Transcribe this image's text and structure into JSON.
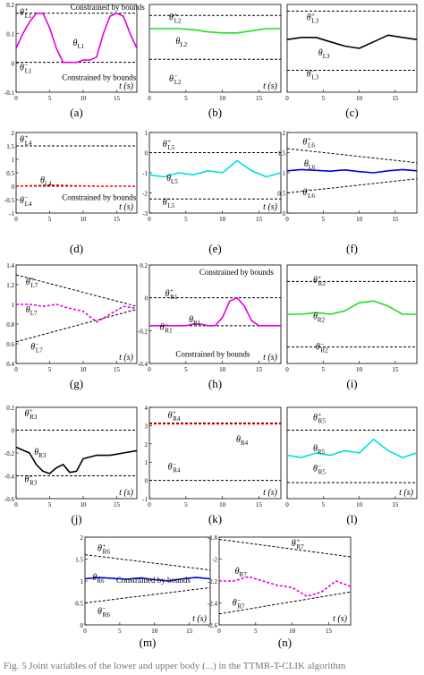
{
  "footer_text": "Fig. 5  Joint variables of the lower and upper body (...) in the TTMR-T-CLIK algorithm",
  "chart_data": [
    {
      "type": "line",
      "caption": "(a)",
      "xlim": [
        0,
        18
      ],
      "ylim": [
        -0.1,
        0.2
      ],
      "yticks": [
        "-0.1",
        "0",
        "0.1",
        "0.2"
      ],
      "xticks": [
        "0",
        "5",
        "10",
        "15"
      ],
      "xlabel": "t (s)",
      "bounds": [
        {
          "name": "θ+L1",
          "y": [
            0.17,
            0.17
          ]
        },
        {
          "name": "θ−L1",
          "y": [
            0.002,
            0.002
          ]
        }
      ],
      "series": [
        {
          "name": "θL1",
          "color": "#e000e0",
          "style": "solid",
          "x": [
            0,
            1,
            2,
            3,
            4,
            5,
            6,
            7,
            8,
            9,
            10,
            11,
            12,
            13,
            14,
            15,
            16,
            17,
            18
          ],
          "y": [
            0.05,
            0.1,
            0.14,
            0.17,
            0.17,
            0.12,
            0.05,
            0.002,
            0.002,
            0.002,
            0.01,
            0.01,
            0.02,
            0.1,
            0.16,
            0.17,
            0.16,
            0.1,
            0.05
          ]
        }
      ],
      "annotations": [
        "Constrained by bounds",
        "Constrained by bounds"
      ]
    },
    {
      "type": "line",
      "caption": "(b)",
      "xlim": [
        0,
        18
      ],
      "ylim": [
        -0.6,
        0.2
      ],
      "yticks": [],
      "xticks": [
        "0",
        "5",
        "10",
        "15"
      ],
      "xlabel": "t (s)",
      "bounds": [
        {
          "name": "θ+L2",
          "y": [
            0.1,
            0.1
          ]
        },
        {
          "name": "θ−L2",
          "y": [
            -0.3,
            -0.3
          ]
        }
      ],
      "series": [
        {
          "name": "θL2",
          "color": "#22dd22",
          "style": "solid",
          "x": [
            0,
            2,
            4,
            6,
            8,
            10,
            12,
            14,
            16,
            18
          ],
          "y": [
            -0.02,
            -0.02,
            -0.02,
            -0.03,
            -0.05,
            -0.06,
            -0.06,
            -0.04,
            -0.02,
            -0.02
          ]
        }
      ],
      "annotations": []
    },
    {
      "type": "line",
      "caption": "(c)",
      "xlim": [
        0,
        18
      ],
      "ylim": [
        -0.2,
        0.2
      ],
      "yticks": [],
      "xticks": [
        "0",
        "5",
        "10",
        "15"
      ],
      "xlabel": "",
      "bounds": [
        {
          "name": "θ+L3",
          "y": [
            0.17,
            0.17
          ]
        },
        {
          "name": "θ−L3",
          "y": [
            -0.1,
            -0.1
          ]
        }
      ],
      "series": [
        {
          "name": "θL3",
          "color": "#000000",
          "style": "solid",
          "x": [
            0,
            2,
            4,
            6,
            8,
            10,
            12,
            14,
            16,
            18
          ],
          "y": [
            0.04,
            0.05,
            0.05,
            0.03,
            0.01,
            0.0,
            0.03,
            0.06,
            0.05,
            0.04
          ]
        }
      ],
      "annotations": []
    },
    {
      "type": "line",
      "caption": "(d)",
      "xlim": [
        0,
        18
      ],
      "ylim": [
        -1,
        2
      ],
      "yticks": [
        "-1",
        "-0.5",
        "0",
        "0.5",
        "1",
        "1.5",
        "2"
      ],
      "xticks": [
        "0",
        "5",
        "10",
        "15"
      ],
      "xlabel": "t (s)",
      "bounds": [
        {
          "name": "θ+L4",
          "y": [
            1.5,
            1.5
          ]
        },
        {
          "name": "θ−L4",
          "y": [
            0.0,
            0.0
          ]
        }
      ],
      "series": [
        {
          "name": "θL4",
          "color": "#ff0000",
          "style": "dashed",
          "x": [
            0,
            4,
            6,
            8,
            10,
            12,
            18
          ],
          "y": [
            0.0,
            0.03,
            0.04,
            0.02,
            0.01,
            0.0,
            0.0
          ]
        }
      ],
      "annotations": [
        "Constrained by bounds"
      ]
    },
    {
      "type": "line",
      "caption": "(e)",
      "xlim": [
        0,
        18
      ],
      "ylim": [
        -3,
        1
      ],
      "yticks": [
        "-3",
        "-2",
        "-1",
        "0",
        "1"
      ],
      "xticks": [
        "0",
        "5",
        "10",
        "15"
      ],
      "xlabel": "t (s)",
      "bounds": [
        {
          "name": "θ+L5",
          "y": [
            0.0,
            0.0
          ]
        },
        {
          "name": "θ−L5",
          "y": [
            -2.3,
            -2.3
          ]
        }
      ],
      "series": [
        {
          "name": "θL5",
          "color": "#00e0e0",
          "style": "solid",
          "x": [
            0,
            2,
            4,
            6,
            8,
            10,
            12,
            14,
            16,
            18
          ],
          "y": [
            -1.1,
            -1.2,
            -1.0,
            -1.1,
            -0.9,
            -1.0,
            -0.4,
            -0.9,
            -1.2,
            -1.0
          ]
        }
      ],
      "annotations": []
    },
    {
      "type": "line",
      "caption": "(f)",
      "xlim": [
        0,
        18
      ],
      "ylim": [
        0,
        2
      ],
      "yticks": [
        "0",
        "0.5",
        "1",
        "1.5",
        "2"
      ],
      "xticks": [
        "0",
        "5",
        "10",
        "15"
      ],
      "xlabel": "",
      "bounds": [
        {
          "name": "θ+L6",
          "y": [
            1.6,
            1.25
          ]
        },
        {
          "name": "θ−L6",
          "y": [
            0.5,
            0.85
          ]
        }
      ],
      "series": [
        {
          "name": "θL6",
          "color": "#0000dd",
          "style": "solid",
          "x": [
            0,
            2,
            4,
            6,
            8,
            10,
            12,
            14,
            16,
            18
          ],
          "y": [
            1.05,
            1.08,
            1.06,
            1.04,
            1.07,
            1.03,
            1.0,
            1.05,
            1.08,
            1.05
          ]
        }
      ],
      "annotations": []
    },
    {
      "type": "line",
      "caption": "(g)",
      "xlim": [
        0,
        18
      ],
      "ylim": [
        0.4,
        1.4
      ],
      "yticks": [
        "0.4",
        "0.6",
        "0.8",
        "1",
        "1.2",
        "1.4"
      ],
      "xticks": [
        "0",
        "5",
        "10",
        "15"
      ],
      "xlabel": "t (s)",
      "bounds": [
        {
          "name": "θ+L7",
          "y": [
            1.3,
            0.98
          ]
        },
        {
          "name": "θ−L7",
          "y": [
            0.62,
            0.95
          ]
        }
      ],
      "series": [
        {
          "name": "θL7",
          "color": "#e000e0",
          "style": "dashed",
          "x": [
            0,
            2,
            4,
            6,
            8,
            10,
            12,
            14,
            16,
            18
          ],
          "y": [
            1.0,
            1.0,
            0.98,
            1.0,
            0.96,
            0.93,
            0.82,
            0.9,
            0.98,
            0.96
          ]
        }
      ],
      "annotations": []
    },
    {
      "type": "line",
      "caption": "(h)",
      "xlim": [
        0,
        18
      ],
      "ylim": [
        -0.4,
        0.2
      ],
      "yticks": [
        "-0.4",
        "-0.2",
        "0",
        "0.2"
      ],
      "xticks": [
        "0",
        "5",
        "10",
        "15"
      ],
      "xlabel": "t (s)",
      "bounds": [
        {
          "name": "θ+R1",
          "y": [
            0.0,
            0.0
          ]
        },
        {
          "name": "θ−R1",
          "y": [
            -0.17,
            -0.17
          ]
        }
      ],
      "series": [
        {
          "name": "θR1",
          "color": "#e000e0",
          "style": "solid",
          "x": [
            0,
            2,
            4,
            5,
            6,
            7,
            8,
            9,
            10,
            11,
            12,
            13,
            14,
            15,
            16,
            18
          ],
          "y": [
            -0.17,
            -0.17,
            -0.17,
            -0.17,
            -0.16,
            -0.16,
            -0.17,
            -0.17,
            -0.12,
            -0.02,
            0.0,
            -0.05,
            -0.14,
            -0.17,
            -0.17,
            -0.17
          ]
        }
      ],
      "annotations": [
        "Constrained by bounds",
        "Constrained by bounds"
      ]
    },
    {
      "type": "line",
      "caption": "(i)",
      "xlim": [
        0,
        18
      ],
      "ylim": [
        -0.4,
        0.2
      ],
      "yticks": [],
      "xticks": [
        "0",
        "5",
        "10",
        "15"
      ],
      "xlabel": "",
      "bounds": [
        {
          "name": "θ+R2",
          "y": [
            0.1,
            0.1
          ]
        },
        {
          "name": "θ−R2",
          "y": [
            -0.3,
            -0.3
          ]
        }
      ],
      "series": [
        {
          "name": "θR2",
          "color": "#22dd22",
          "style": "solid",
          "x": [
            0,
            2,
            4,
            6,
            8,
            10,
            12,
            14,
            16,
            18
          ],
          "y": [
            -0.1,
            -0.1,
            -0.09,
            -0.1,
            -0.08,
            -0.03,
            -0.02,
            -0.05,
            -0.1,
            -0.1
          ]
        }
      ],
      "annotations": []
    },
    {
      "type": "line",
      "caption": "(j)",
      "xlim": [
        0,
        18
      ],
      "ylim": [
        -0.6,
        0.2
      ],
      "yticks": [
        "-0.6",
        "-0.4",
        "-0.2",
        "0",
        "0.2"
      ],
      "xticks": [
        "0",
        "5",
        "10",
        "15"
      ],
      "xlabel": "t (s)",
      "bounds": [
        {
          "name": "θ+R3",
          "y": [
            0.0,
            0.0
          ]
        },
        {
          "name": "θ−R3",
          "y": [
            -0.4,
            -0.4
          ]
        }
      ],
      "series": [
        {
          "name": "θR3",
          "color": "#000000",
          "style": "solid",
          "x": [
            0,
            2,
            3,
            4,
            5,
            6,
            7,
            8,
            9,
            10,
            12,
            14,
            16,
            18
          ],
          "y": [
            -0.15,
            -0.2,
            -0.3,
            -0.36,
            -0.38,
            -0.33,
            -0.3,
            -0.37,
            -0.36,
            -0.25,
            -0.22,
            -0.22,
            -0.2,
            -0.18
          ]
        }
      ],
      "annotations": []
    },
    {
      "type": "line",
      "caption": "(k)",
      "xlim": [
        0,
        18
      ],
      "ylim": [
        -1,
        4
      ],
      "yticks": [
        "-1",
        "0",
        "1",
        "2",
        "3",
        "4"
      ],
      "xticks": [
        "0",
        "5",
        "10",
        "15"
      ],
      "xlabel": "t (s)",
      "bounds": [
        {
          "name": "θ+R4",
          "y": [
            3.14,
            3.14
          ]
        },
        {
          "name": "θ−R4",
          "y": [
            0.0,
            0.0
          ]
        }
      ],
      "series": [
        {
          "name": "θR4",
          "color": "#ff0000",
          "style": "dashed",
          "x": [
            0,
            18
          ],
          "y": [
            3.1,
            3.1
          ]
        }
      ],
      "annotations": []
    },
    {
      "type": "line",
      "caption": "(l)",
      "xlim": [
        0,
        18
      ],
      "ylim": [
        -3,
        1
      ],
      "yticks": [],
      "xticks": [
        "0",
        "5",
        "10",
        "15"
      ],
      "xlabel": "t (s)",
      "bounds": [
        {
          "name": "θ+R5",
          "y": [
            0.0,
            0.0
          ]
        },
        {
          "name": "θ−R5",
          "y": [
            -2.3,
            -2.3
          ]
        }
      ],
      "series": [
        {
          "name": "θR5",
          "color": "#00e0e0",
          "style": "solid",
          "x": [
            0,
            2,
            4,
            6,
            8,
            10,
            12,
            14,
            16,
            18
          ],
          "y": [
            -1.1,
            -1.2,
            -1.0,
            -1.1,
            -0.9,
            -1.0,
            -0.4,
            -0.9,
            -1.2,
            -1.0
          ]
        }
      ],
      "annotations": []
    },
    {
      "type": "line",
      "caption": "(m)",
      "xlim": [
        0,
        18
      ],
      "ylim": [
        0,
        2
      ],
      "yticks": [
        "0",
        "0.5",
        "1",
        "1.5",
        "2"
      ],
      "xticks": [
        "0",
        "5",
        "10",
        "15"
      ],
      "xlabel": "t (s)",
      "bounds": [
        {
          "name": "θ+R6",
          "y": [
            1.6,
            1.25
          ]
        },
        {
          "name": "θ−R6",
          "y": [
            0.5,
            0.85
          ]
        }
      ],
      "series": [
        {
          "name": "θR6",
          "color": "#0000dd",
          "style": "solid",
          "x": [
            0,
            2,
            4,
            6,
            8,
            10,
            12,
            14,
            16,
            18
          ],
          "y": [
            1.05,
            1.08,
            1.06,
            1.04,
            1.07,
            1.03,
            1.0,
            1.05,
            1.08,
            1.05
          ]
        }
      ],
      "annotations": [
        "Constrained by bounds"
      ]
    },
    {
      "type": "line",
      "caption": "(n)",
      "xlim": [
        0,
        18
      ],
      "ylim": [
        -2.6,
        -1.8
      ],
      "yticks": [
        "-2.6",
        "-2.4",
        "-2.2",
        "-2",
        "-1.8"
      ],
      "xticks": [
        "0",
        "5",
        "10",
        "15"
      ],
      "xlabel": "t (s)",
      "bounds": [
        {
          "name": "θ+R7",
          "y": [
            -1.82,
            -1.98
          ]
        },
        {
          "name": "θ−R7",
          "y": [
            -2.5,
            -2.3
          ]
        }
      ],
      "series": [
        {
          "name": "θR7",
          "color": "#e000e0",
          "style": "dashed",
          "x": [
            0,
            2,
            4,
            6,
            8,
            10,
            12,
            14,
            16,
            18
          ],
          "y": [
            -2.2,
            -2.2,
            -2.16,
            -2.2,
            -2.24,
            -2.26,
            -2.34,
            -2.3,
            -2.2,
            -2.25
          ]
        }
      ],
      "annotations": []
    }
  ]
}
